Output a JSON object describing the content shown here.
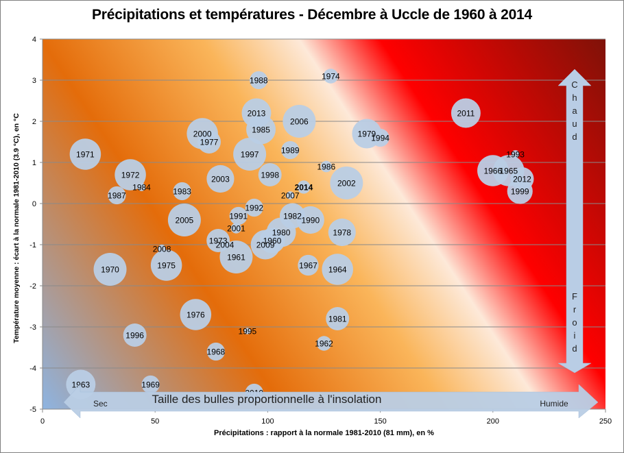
{
  "chart_data": {
    "type": "scatter",
    "subtype": "bubble",
    "title": "Précipitations et températures - Décembre à Uccle de 1960 à 2014",
    "xlabel": "Précipitations : rapport à la normale 1981-2010 (81 mm), en %",
    "ylabel": "Température moyenne : écart à la normale 1981-2010 (3.9 °C), en °C",
    "xlim": [
      0,
      250
    ],
    "ylim": [
      -5,
      4
    ],
    "xticks": [
      "0",
      "50",
      "100",
      "150",
      "200",
      "250"
    ],
    "xtick_values": [
      0,
      50,
      100,
      150,
      200,
      250
    ],
    "yticks": [
      "-5",
      "-4",
      "-3",
      "-2",
      "-1",
      "0",
      "1",
      "2",
      "3",
      "4"
    ],
    "ytick_values": [
      -5,
      -4,
      -3,
      -2,
      -1,
      0,
      1,
      2,
      3,
      4
    ],
    "grid": "horizontal",
    "bubble_color": "#b9cde5",
    "highlight_color": "#c00000",
    "highlight_year": "2014",
    "points": [
      {
        "label": "1960",
        "x": 102,
        "y": -0.9,
        "size": 3
      },
      {
        "label": "1961",
        "x": 86,
        "y": -1.3,
        "size": 5
      },
      {
        "label": "1962",
        "x": 125,
        "y": -3.4,
        "size": 1
      },
      {
        "label": "1963",
        "x": 17,
        "y": -4.4,
        "size": 4
      },
      {
        "label": "1964",
        "x": 131,
        "y": -1.6,
        "size": 4.5
      },
      {
        "label": "1965",
        "x": 207,
        "y": 0.8,
        "size": 4.5
      },
      {
        "label": "1966",
        "x": 200,
        "y": 0.8,
        "size": 4.5
      },
      {
        "label": "1967",
        "x": 118,
        "y": -1.5,
        "size": 2
      },
      {
        "label": "1968",
        "x": 77,
        "y": -3.6,
        "size": 1.5
      },
      {
        "label": "1969",
        "x": 48,
        "y": -4.4,
        "size": 1.5
      },
      {
        "label": "1970",
        "x": 30,
        "y": -1.6,
        "size": 5
      },
      {
        "label": "1971",
        "x": 19,
        "y": 1.2,
        "size": 4.5
      },
      {
        "label": "1972",
        "x": 39,
        "y": 0.7,
        "size": 4.5
      },
      {
        "label": "1973",
        "x": 78,
        "y": -0.9,
        "size": 2.5
      },
      {
        "label": "1974",
        "x": 128,
        "y": 3.1,
        "size": 1
      },
      {
        "label": "1975",
        "x": 55,
        "y": -1.5,
        "size": 4.5
      },
      {
        "label": "1976",
        "x": 68,
        "y": -2.7,
        "size": 4.5
      },
      {
        "label": "1977",
        "x": 74,
        "y": 1.5,
        "size": 2.5
      },
      {
        "label": "1978",
        "x": 133,
        "y": -0.7,
        "size": 3.5
      },
      {
        "label": "1979",
        "x": 144,
        "y": 1.7,
        "size": 4
      },
      {
        "label": "1980",
        "x": 106,
        "y": -0.7,
        "size": 4
      },
      {
        "label": "1981",
        "x": 131,
        "y": -2.8,
        "size": 2.5
      },
      {
        "label": "1982",
        "x": 111,
        "y": -0.3,
        "size": 3
      },
      {
        "label": "1983",
        "x": 62,
        "y": 0.3,
        "size": 1.5
      },
      {
        "label": "1984",
        "x": 44,
        "y": 0.4,
        "size": 0.3
      },
      {
        "label": "1985",
        "x": 97,
        "y": 1.8,
        "size": 4
      },
      {
        "label": "1986",
        "x": 126,
        "y": 0.9,
        "size": 0.6
      },
      {
        "label": "1987",
        "x": 33,
        "y": 0.2,
        "size": 1.5
      },
      {
        "label": "1988",
        "x": 96,
        "y": 3.0,
        "size": 1.5
      },
      {
        "label": "1989",
        "x": 110,
        "y": 1.3,
        "size": 1.5
      },
      {
        "label": "1990",
        "x": 119,
        "y": -0.4,
        "size": 3.5
      },
      {
        "label": "1991",
        "x": 87,
        "y": -0.3,
        "size": 1.5
      },
      {
        "label": "1992",
        "x": 94,
        "y": -0.1,
        "size": 1.5
      },
      {
        "label": "1993",
        "x": 210,
        "y": 1.2,
        "size": 0.3
      },
      {
        "label": "1994",
        "x": 150,
        "y": 1.6,
        "size": 1.5
      },
      {
        "label": "1995",
        "x": 91,
        "y": -3.1,
        "size": 0.2
      },
      {
        "label": "1996",
        "x": 41,
        "y": -3.2,
        "size": 2.5
      },
      {
        "label": "1997",
        "x": 92,
        "y": 1.2,
        "size": 5
      },
      {
        "label": "1998",
        "x": 101,
        "y": 0.7,
        "size": 2.5
      },
      {
        "label": "1999",
        "x": 212,
        "y": 0.3,
        "size": 3
      },
      {
        "label": "2000",
        "x": 71,
        "y": 1.7,
        "size": 4.5
      },
      {
        "label": "2001",
        "x": 86,
        "y": -0.6,
        "size": 0.5
      },
      {
        "label": "2002",
        "x": 135,
        "y": 0.5,
        "size": 5
      },
      {
        "label": "2003",
        "x": 79,
        "y": 0.6,
        "size": 3.5
      },
      {
        "label": "2004",
        "x": 81,
        "y": -1.0,
        "size": 0.4
      },
      {
        "label": "2005",
        "x": 63,
        "y": -0.4,
        "size": 5
      },
      {
        "label": "2006",
        "x": 114,
        "y": 2.0,
        "size": 5
      },
      {
        "label": "2007",
        "x": 110,
        "y": 0.2,
        "size": 0.3
      },
      {
        "label": "2008",
        "x": 53,
        "y": -1.1,
        "size": 0.3
      },
      {
        "label": "2009",
        "x": 99,
        "y": -1.0,
        "size": 4
      },
      {
        "label": "2010",
        "x": 94,
        "y": -4.6,
        "size": 1.5
      },
      {
        "label": "2011",
        "x": 188,
        "y": 2.2,
        "size": 4
      },
      {
        "label": "2012",
        "x": 213,
        "y": 0.6,
        "size": 2.5
      },
      {
        "label": "2013",
        "x": 95,
        "y": 2.2,
        "size": 4
      },
      {
        "label": "2014",
        "x": 116,
        "y": 0.4,
        "size": 0.8
      }
    ],
    "annotations": {
      "horizontal_arrow": {
        "text": "Taille des bulles proportionnelle à l'insolation",
        "left": "Sec",
        "right": "Humide"
      },
      "vertical_arrow": {
        "top": "Chaud",
        "bottom": "Froid"
      }
    },
    "background_gradient": [
      "#8db4e2",
      "#e46c0a",
      "#fab55a",
      "#fde9d9",
      "#ff0000",
      "#7f1208"
    ]
  }
}
